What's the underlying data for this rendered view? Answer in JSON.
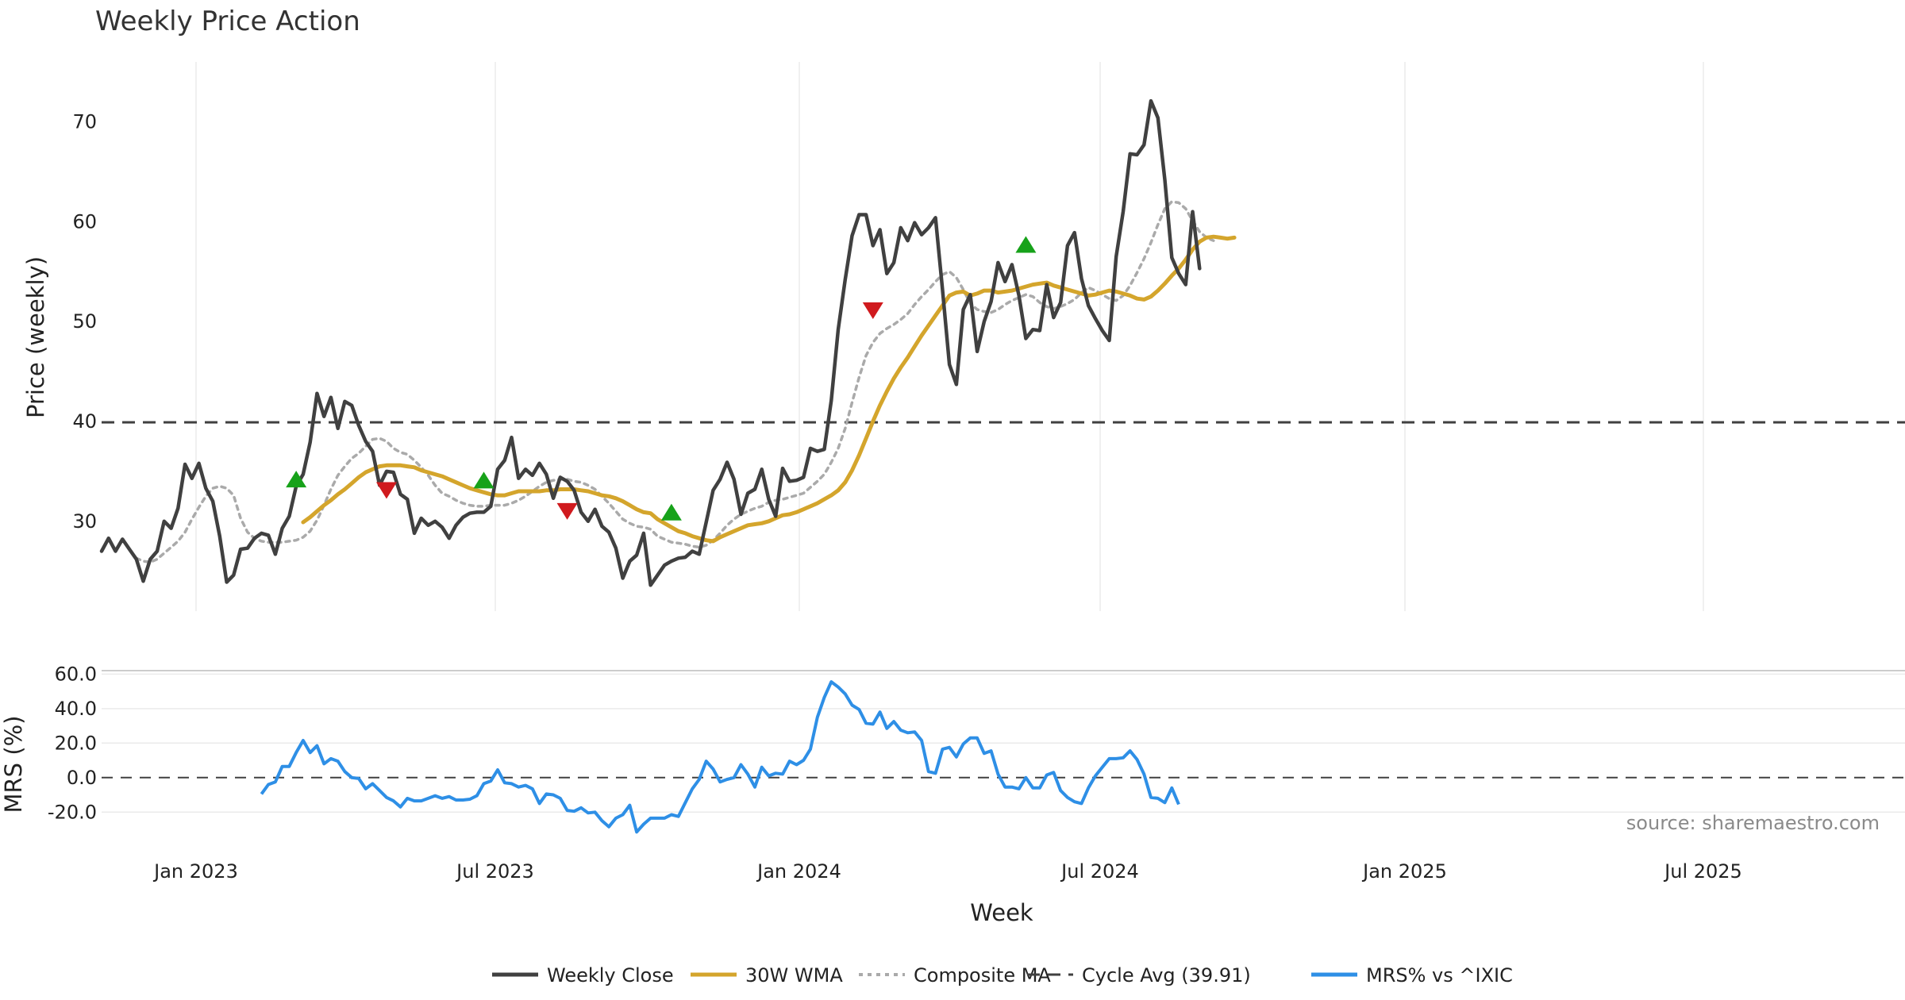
{
  "chart_data": {
    "type": "line",
    "title": "Weekly Price Action",
    "xlabel": "Week",
    "source": "source: sharemaestro.com",
    "x_ticks": [
      "Jan 2023",
      "Jul 2023",
      "Jan 2024",
      "Jul 2024",
      "Jan 2025",
      "Jul 2025"
    ],
    "price_panel": {
      "ylabel": "Price (weekly)",
      "ylim": [
        21,
        76
      ],
      "y_ticks": [
        30,
        40,
        50,
        60,
        70
      ],
      "cycle_avg": 39.91,
      "series": [
        {
          "name": "Weekly Close",
          "color": "#404040",
          "start_week": 0,
          "values": [
            27.0,
            28.3,
            27.0,
            28.2,
            27.2,
            26.2,
            24.0,
            26.2,
            27.0,
            30.0,
            29.3,
            31.3,
            35.7,
            34.3,
            35.8,
            33.3,
            32.0,
            28.5,
            23.9,
            24.6,
            27.2,
            27.3,
            28.3,
            28.8,
            28.6,
            26.7,
            29.3,
            30.5,
            33.5,
            34.7,
            37.9,
            42.8,
            40.5,
            42.4,
            39.3,
            42.0,
            41.6,
            39.6,
            38.0,
            37.0,
            33.6,
            35.0,
            34.9,
            32.7,
            32.2,
            28.8,
            30.3,
            29.6,
            30.0,
            29.4,
            28.3,
            29.6,
            30.4,
            30.8,
            30.9,
            30.9,
            31.5,
            35.2,
            36.1,
            38.4,
            34.3,
            35.2,
            34.6,
            35.8,
            34.7,
            32.3,
            34.4,
            34.0,
            33.1,
            30.9,
            30.0,
            31.2,
            29.5,
            28.9,
            27.3,
            24.3,
            26.0,
            26.6,
            28.8,
            23.6,
            24.6,
            25.6,
            26.0,
            26.3,
            26.4,
            27.0,
            26.7,
            29.9,
            33.1,
            34.2,
            35.9,
            34.2,
            30.7,
            32.8,
            33.2,
            35.2,
            32.2,
            30.5,
            35.3,
            34.0,
            34.1,
            34.4,
            37.3,
            37.0,
            37.2,
            42.1,
            49.2,
            54.2,
            58.6,
            60.7,
            60.7,
            57.6,
            59.2,
            54.8,
            55.9,
            59.4,
            58.1,
            59.9,
            58.7,
            59.4,
            60.4,
            53.2,
            45.7,
            43.7,
            51.2,
            52.7,
            47.0,
            50.0,
            52.0,
            55.9,
            54.0,
            55.7,
            52.6,
            48.3,
            49.2,
            49.1,
            53.7,
            50.4,
            51.9,
            57.6,
            58.9,
            54.3,
            51.6,
            50.3,
            49.1,
            48.1,
            56.5,
            61.0,
            66.8,
            66.7,
            67.7,
            72.1,
            70.4,
            64.2,
            56.4,
            54.8,
            53.7,
            61.0,
            55.3
          ]
        },
        {
          "name": "30W WMA",
          "color": "#D4A52C",
          "start_week": 29,
          "values": [
            29.9,
            30.4,
            31.0,
            31.6,
            32.1,
            32.7,
            33.2,
            33.8,
            34.4,
            34.9,
            35.2,
            35.5,
            35.6,
            35.6,
            35.6,
            35.5,
            35.4,
            35.1,
            34.9,
            34.7,
            34.5,
            34.2,
            33.9,
            33.6,
            33.3,
            33.1,
            32.9,
            32.7,
            32.6,
            32.6,
            32.8,
            33.0,
            33.0,
            33.0,
            33.0,
            33.1,
            33.1,
            33.2,
            33.2,
            33.2,
            33.1,
            33.0,
            32.8,
            32.6,
            32.5,
            32.3,
            32.0,
            31.6,
            31.2,
            30.9,
            30.8,
            30.2,
            29.8,
            29.4,
            29.0,
            28.8,
            28.5,
            28.3,
            28.1,
            28.0,
            28.4,
            28.7,
            29.0,
            29.3,
            29.6,
            29.7,
            29.8,
            30.0,
            30.3,
            30.6,
            30.7,
            30.9,
            31.2,
            31.5,
            31.8,
            32.2,
            32.6,
            33.1,
            33.9,
            35.1,
            36.6,
            38.3,
            40.0,
            41.6,
            43.0,
            44.3,
            45.4,
            46.4,
            47.5,
            48.6,
            49.6,
            50.6,
            51.6,
            52.6,
            52.9,
            53.0,
            52.6,
            52.8,
            53.1,
            53.1,
            52.9,
            53.0,
            53.1,
            53.3,
            53.5,
            53.7,
            53.8,
            53.9,
            53.6,
            53.4,
            53.2,
            53.0,
            52.8,
            52.6,
            52.7,
            52.9,
            53.1,
            53.0,
            52.8,
            52.6,
            52.3,
            52.2,
            52.5,
            53.1,
            53.8,
            54.6,
            55.3,
            56.2,
            57.2,
            58.0,
            58.4,
            58.5,
            58.4,
            58.3,
            58.4
          ]
        },
        {
          "name": "Composite MA",
          "color": "#AAAAAA",
          "dashed": true,
          "start_week": 5,
          "values": [
            26.3,
            26.0,
            25.9,
            26.2,
            26.8,
            27.4,
            28.0,
            28.9,
            30.2,
            31.4,
            32.5,
            33.3,
            33.5,
            33.3,
            32.6,
            30.3,
            28.9,
            28.3,
            28.0,
            27.9,
            27.9,
            27.9,
            28.0,
            28.1,
            28.4,
            29.0,
            30.1,
            31.6,
            33.2,
            34.6,
            35.5,
            36.3,
            36.8,
            37.5,
            38.2,
            38.3,
            38.0,
            37.3,
            36.9,
            36.7,
            36.1,
            35.4,
            34.6,
            33.6,
            32.8,
            32.5,
            32.1,
            31.8,
            31.6,
            31.5,
            31.5,
            31.6,
            31.6,
            31.6,
            31.8,
            32.1,
            32.5,
            33.0,
            33.5,
            33.9,
            34.1,
            34.2,
            34.2,
            34.0,
            33.9,
            33.6,
            33.2,
            32.5,
            31.8,
            31.0,
            30.2,
            29.8,
            29.5,
            29.4,
            29.2,
            28.5,
            28.2,
            27.9,
            27.8,
            27.7,
            27.5,
            27.4,
            27.6,
            28.1,
            28.8,
            29.6,
            30.2,
            30.7,
            31.0,
            31.3,
            31.5,
            31.9,
            32.1,
            32.2,
            32.4,
            32.6,
            32.8,
            33.4,
            34.0,
            34.7,
            35.9,
            37.3,
            39.3,
            41.9,
            44.4,
            46.6,
            47.9,
            48.8,
            49.3,
            49.7,
            50.2,
            50.8,
            51.7,
            52.5,
            53.2,
            54.0,
            54.7,
            55.0,
            54.4,
            53.2,
            51.8,
            51.2,
            51.0,
            50.9,
            51.2,
            51.7,
            52.1,
            52.4,
            52.7,
            52.5,
            51.9,
            51.5,
            51.3,
            51.5,
            51.8,
            52.2,
            52.9,
            53.4,
            53.1,
            52.7,
            52.3,
            52.1,
            52.6,
            53.6,
            54.9,
            56.3,
            57.9,
            59.7,
            61.3,
            62.0,
            61.9,
            61.3,
            60.1,
            59.0,
            58.4,
            58.1
          ]
        }
      ],
      "markers": [
        {
          "type": "buy",
          "week": 28,
          "value": 34.1,
          "color": "#17A21A"
        },
        {
          "type": "buy",
          "week": 55,
          "value": 34.0,
          "color": "#17A21A"
        },
        {
          "type": "buy",
          "week": 82,
          "value": 30.8,
          "color": "#17A21A"
        },
        {
          "type": "buy",
          "week": 133,
          "value": 57.6,
          "color": "#17A21A"
        },
        {
          "type": "sell",
          "week": 41,
          "value": 33.2,
          "color": "#D01A1E"
        },
        {
          "type": "sell",
          "week": 67,
          "value": 31.1,
          "color": "#D01A1E"
        },
        {
          "type": "sell",
          "week": 111,
          "value": 51.2,
          "color": "#D01A1E"
        }
      ]
    },
    "mrs_panel": {
      "ylabel": "MRS (%)",
      "ylim": [
        -30,
        62
      ],
      "y_ticks": [
        "60.0",
        "40.0",
        "20.0",
        "0.0",
        "-20.0"
      ],
      "y_tick_values": [
        60,
        40,
        20,
        0,
        -20
      ],
      "series": [
        {
          "name": "MRS% vs ^IXIC",
          "color": "#2E8FE6",
          "start_week": 23,
          "values": [
            -9.5,
            -4.0,
            -2.5,
            6.5,
            6.5,
            14.5,
            21.5,
            14.5,
            18.5,
            8.0,
            11.0,
            9.5,
            3.5,
            0.0,
            -0.5,
            -6.5,
            -3.5,
            -7.5,
            -11.5,
            -13.5,
            -17.0,
            -12.0,
            -13.5,
            -13.5,
            -12.0,
            -10.5,
            -12.0,
            -11.0,
            -13.0,
            -13.0,
            -12.5,
            -10.5,
            -3.5,
            -2.0,
            4.5,
            -3.0,
            -3.5,
            -5.5,
            -4.5,
            -6.5,
            -15.0,
            -9.5,
            -10.0,
            -12.0,
            -19.0,
            -19.5,
            -17.5,
            -20.5,
            -20.0,
            -25.0,
            -28.5,
            -23.5,
            -21.5,
            -16.0,
            -31.5,
            -27.0,
            -23.5,
            -23.5,
            -23.5,
            -21.5,
            -22.5,
            -14.5,
            -6.5,
            -1.0,
            9.5,
            5.0,
            -2.5,
            -1.0,
            0.0,
            7.5,
            2.0,
            -5.5,
            6.0,
            1.0,
            2.5,
            2.0,
            9.5,
            7.5,
            10.0,
            16.5,
            35.0,
            46.5,
            55.5,
            52.5,
            48.5,
            42.0,
            39.5,
            31.5,
            31.0,
            38.0,
            28.5,
            32.5,
            27.5,
            26.0,
            26.5,
            21.5,
            3.5,
            2.5,
            16.5,
            17.5,
            12.0,
            19.5,
            23.0,
            23.0,
            14.0,
            15.5,
            2.0,
            -5.5,
            -5.5,
            -6.5,
            0.0,
            -6.0,
            -6.0,
            1.5,
            3.0,
            -7.5,
            -11.5,
            -14.0,
            -15.0,
            -6.0,
            1.0,
            6.0,
            11.0,
            11.0,
            11.5,
            15.5,
            10.5,
            2.0,
            -11.5,
            -12.0,
            -14.5,
            -6.0,
            -15.5
          ]
        }
      ]
    },
    "legend": [
      {
        "label": "Weekly Close",
        "color": "#404040",
        "style": "solid"
      },
      {
        "label": "30W WMA",
        "color": "#D4A52C",
        "style": "solid"
      },
      {
        "label": "Composite MA",
        "color": "#AAAAAA",
        "style": "dotted"
      },
      {
        "label": "Cycle Avg (39.91)",
        "color": "#404040",
        "style": "dashed"
      },
      {
        "label": "MRS% vs ^IXIC",
        "color": "#2E8FE6",
        "style": "solid"
      }
    ]
  }
}
